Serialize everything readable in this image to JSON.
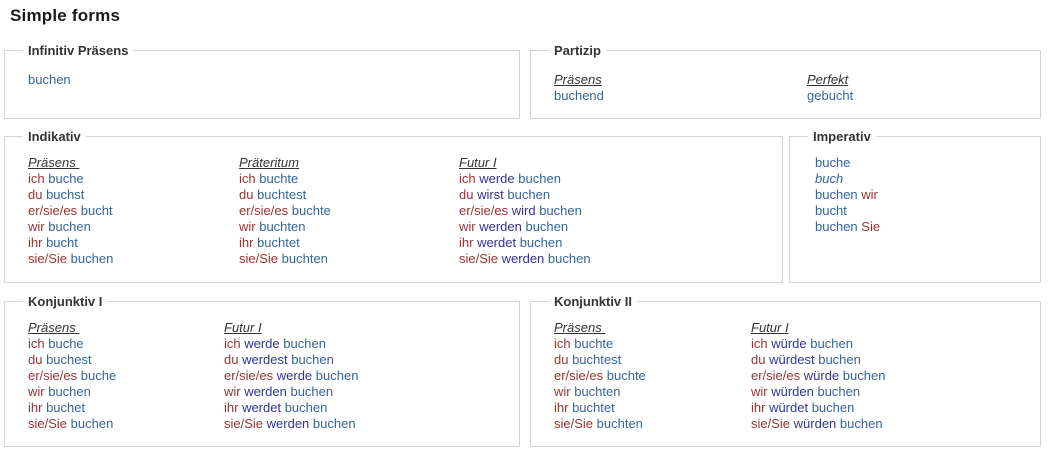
{
  "title": "Simple forms",
  "verb": "buchen",
  "colors": {
    "pronoun": "#993333",
    "verb": "#336699",
    "aux": "#333399",
    "header": "#333333",
    "border": "#cfd5dc"
  },
  "boxes": [
    {
      "legend": "Infinitiv Präsens",
      "columns": [
        {
          "header": "",
          "rows": [
            [
              {
                "t": "buchen",
                "c": "verb"
              }
            ]
          ]
        }
      ]
    },
    {
      "legend": "Partizip",
      "columns": [
        {
          "header": "Präsens",
          "rows": [
            [
              {
                "t": "buchend",
                "c": "verb"
              }
            ]
          ]
        },
        {
          "header": "Perfekt",
          "rows": [
            [
              {
                "t": "gebucht",
                "c": "verb"
              }
            ]
          ]
        }
      ]
    },
    {
      "legend": "Indikativ",
      "columns": [
        {
          "header": "Präsens ",
          "rows": [
            [
              {
                "t": "ich",
                "c": "pronoun"
              },
              {
                "t": " buche",
                "c": "verb"
              }
            ],
            [
              {
                "t": "du",
                "c": "pronoun"
              },
              {
                "t": " buchst",
                "c": "verb"
              }
            ],
            [
              {
                "t": "er/sie/es",
                "c": "pronoun"
              },
              {
                "t": " bucht",
                "c": "verb"
              }
            ],
            [
              {
                "t": "wir",
                "c": "pronoun"
              },
              {
                "t": " buchen",
                "c": "verb"
              }
            ],
            [
              {
                "t": "ihr",
                "c": "pronoun"
              },
              {
                "t": " bucht",
                "c": "verb"
              }
            ],
            [
              {
                "t": "sie/Sie",
                "c": "pronoun"
              },
              {
                "t": " buchen",
                "c": "verb"
              }
            ]
          ]
        },
        {
          "header": "Präteritum",
          "rows": [
            [
              {
                "t": "ich",
                "c": "pronoun"
              },
              {
                "t": " buchte",
                "c": "verb"
              }
            ],
            [
              {
                "t": "du",
                "c": "pronoun"
              },
              {
                "t": " buchtest",
                "c": "verb"
              }
            ],
            [
              {
                "t": "er/sie/es",
                "c": "pronoun"
              },
              {
                "t": " buchte",
                "c": "verb"
              }
            ],
            [
              {
                "t": "wir",
                "c": "pronoun"
              },
              {
                "t": " buchten",
                "c": "verb"
              }
            ],
            [
              {
                "t": "ihr",
                "c": "pronoun"
              },
              {
                "t": " buchtet",
                "c": "verb"
              }
            ],
            [
              {
                "t": "sie/Sie",
                "c": "pronoun"
              },
              {
                "t": " buchten",
                "c": "verb"
              }
            ]
          ]
        },
        {
          "header": "Futur I",
          "rows": [
            [
              {
                "t": "ich",
                "c": "pronoun"
              },
              {
                "t": " werde",
                "c": "aux"
              },
              {
                "t": " buchen",
                "c": "verb"
              }
            ],
            [
              {
                "t": "du",
                "c": "pronoun"
              },
              {
                "t": " wirst",
                "c": "aux"
              },
              {
                "t": " buchen",
                "c": "verb"
              }
            ],
            [
              {
                "t": "er/sie/es",
                "c": "pronoun"
              },
              {
                "t": " wird",
                "c": "aux"
              },
              {
                "t": " buchen",
                "c": "verb"
              }
            ],
            [
              {
                "t": "wir",
                "c": "pronoun"
              },
              {
                "t": " werden",
                "c": "aux"
              },
              {
                "t": " buchen",
                "c": "verb"
              }
            ],
            [
              {
                "t": "ihr",
                "c": "pronoun"
              },
              {
                "t": " werdet",
                "c": "aux"
              },
              {
                "t": " buchen",
                "c": "verb"
              }
            ],
            [
              {
                "t": "sie/Sie",
                "c": "pronoun"
              },
              {
                "t": " werden",
                "c": "aux"
              },
              {
                "t": " buchen",
                "c": "verb"
              }
            ]
          ]
        }
      ]
    },
    {
      "legend": "Imperativ",
      "columns": [
        {
          "header": "",
          "rows": [
            [
              {
                "t": "buche",
                "c": "verb"
              }
            ],
            [
              {
                "t": "buch",
                "c": "verb-alt"
              }
            ],
            [
              {
                "t": "buchen",
                "c": "verb"
              },
              {
                "t": " wir",
                "c": "pronoun"
              }
            ],
            [
              {
                "t": "bucht",
                "c": "verb"
              }
            ],
            [
              {
                "t": "buchen",
                "c": "verb"
              },
              {
                "t": " Sie",
                "c": "pronoun"
              }
            ]
          ]
        }
      ]
    },
    {
      "legend": "Konjunktiv I",
      "columns": [
        {
          "header": "Präsens ",
          "rows": [
            [
              {
                "t": "ich",
                "c": "pronoun"
              },
              {
                "t": " buche",
                "c": "verb"
              }
            ],
            [
              {
                "t": "du",
                "c": "pronoun"
              },
              {
                "t": " buchest",
                "c": "verb"
              }
            ],
            [
              {
                "t": "er/sie/es",
                "c": "pronoun"
              },
              {
                "t": " buche",
                "c": "verb"
              }
            ],
            [
              {
                "t": "wir",
                "c": "pronoun"
              },
              {
                "t": " buchen",
                "c": "verb"
              }
            ],
            [
              {
                "t": "ihr",
                "c": "pronoun"
              },
              {
                "t": " buchet",
                "c": "verb"
              }
            ],
            [
              {
                "t": "sie/Sie",
                "c": "pronoun"
              },
              {
                "t": " buchen",
                "c": "verb"
              }
            ]
          ]
        },
        {
          "header": "Futur I",
          "rows": [
            [
              {
                "t": "ich",
                "c": "pronoun"
              },
              {
                "t": " werde",
                "c": "aux"
              },
              {
                "t": " buchen",
                "c": "verb"
              }
            ],
            [
              {
                "t": "du",
                "c": "pronoun"
              },
              {
                "t": " werdest",
                "c": "aux"
              },
              {
                "t": " buchen",
                "c": "verb"
              }
            ],
            [
              {
                "t": "er/sie/es",
                "c": "pronoun"
              },
              {
                "t": " werde",
                "c": "aux"
              },
              {
                "t": " buchen",
                "c": "verb"
              }
            ],
            [
              {
                "t": "wir",
                "c": "pronoun"
              },
              {
                "t": " werden",
                "c": "aux"
              },
              {
                "t": " buchen",
                "c": "verb"
              }
            ],
            [
              {
                "t": "ihr",
                "c": "pronoun"
              },
              {
                "t": " werdet",
                "c": "aux"
              },
              {
                "t": " buchen",
                "c": "verb"
              }
            ],
            [
              {
                "t": "sie/Sie",
                "c": "pronoun"
              },
              {
                "t": " werden",
                "c": "aux"
              },
              {
                "t": " buchen",
                "c": "verb"
              }
            ]
          ]
        }
      ]
    },
    {
      "legend": "Konjunktiv II",
      "columns": [
        {
          "header": "Präsens ",
          "rows": [
            [
              {
                "t": "ich",
                "c": "pronoun"
              },
              {
                "t": " buchte",
                "c": "verb"
              }
            ],
            [
              {
                "t": "du",
                "c": "pronoun"
              },
              {
                "t": " buchtest",
                "c": "verb"
              }
            ],
            [
              {
                "t": "er/sie/es",
                "c": "pronoun"
              },
              {
                "t": " buchte",
                "c": "verb"
              }
            ],
            [
              {
                "t": "wir",
                "c": "pronoun"
              },
              {
                "t": " buchten",
                "c": "verb"
              }
            ],
            [
              {
                "t": "ihr",
                "c": "pronoun"
              },
              {
                "t": " buchtet",
                "c": "verb"
              }
            ],
            [
              {
                "t": "sie/Sie",
                "c": "pronoun"
              },
              {
                "t": " buchten",
                "c": "verb"
              }
            ]
          ]
        },
        {
          "header": "Futur I",
          "rows": [
            [
              {
                "t": "ich",
                "c": "pronoun"
              },
              {
                "t": " würde",
                "c": "aux"
              },
              {
                "t": " buchen",
                "c": "verb"
              }
            ],
            [
              {
                "t": "du",
                "c": "pronoun"
              },
              {
                "t": " würdest",
                "c": "aux"
              },
              {
                "t": " buchen",
                "c": "verb"
              }
            ],
            [
              {
                "t": "er/sie/es",
                "c": "pronoun"
              },
              {
                "t": " würde",
                "c": "aux"
              },
              {
                "t": " buchen",
                "c": "verb"
              }
            ],
            [
              {
                "t": "wir",
                "c": "pronoun"
              },
              {
                "t": " würden",
                "c": "aux"
              },
              {
                "t": " buchen",
                "c": "verb"
              }
            ],
            [
              {
                "t": "ihr",
                "c": "pronoun"
              },
              {
                "t": " würdet",
                "c": "aux"
              },
              {
                "t": " buchen",
                "c": "verb"
              }
            ],
            [
              {
                "t": "sie/Sie",
                "c": "pronoun"
              },
              {
                "t": " würden",
                "c": "aux"
              },
              {
                "t": " buchen",
                "c": "verb"
              }
            ]
          ]
        }
      ]
    }
  ]
}
